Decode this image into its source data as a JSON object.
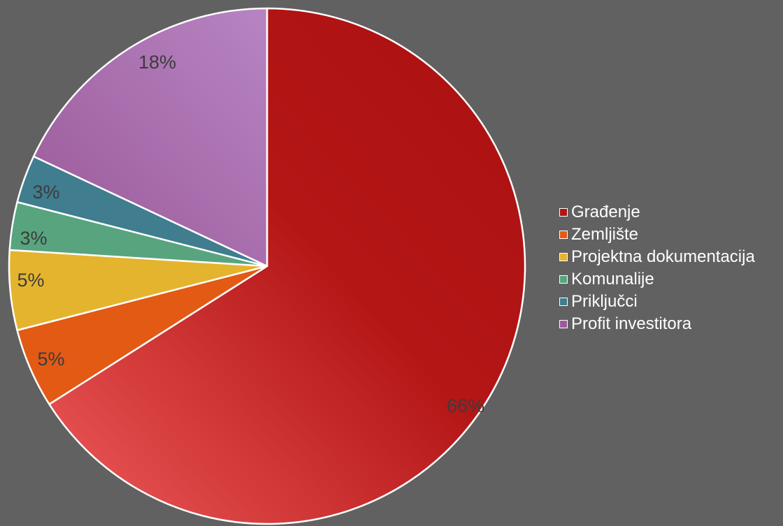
{
  "chart_data": {
    "type": "pie",
    "title": "",
    "labels": [
      "Građenje",
      "Zemljište",
      "Projektna dokumentacija",
      "Komunalije",
      "Priključci",
      "Profit investitora"
    ],
    "values": [
      66,
      5,
      5,
      3,
      3,
      18
    ],
    "value_labels": [
      "66%",
      "5%",
      "5%",
      "3%",
      "3%",
      "18%"
    ],
    "colors": [
      "#b01414",
      "#e25a14",
      "#e5b42e",
      "#58a47e",
      "#3f7d8f",
      "#9e5a9c"
    ],
    "legend_placement": "right"
  }
}
